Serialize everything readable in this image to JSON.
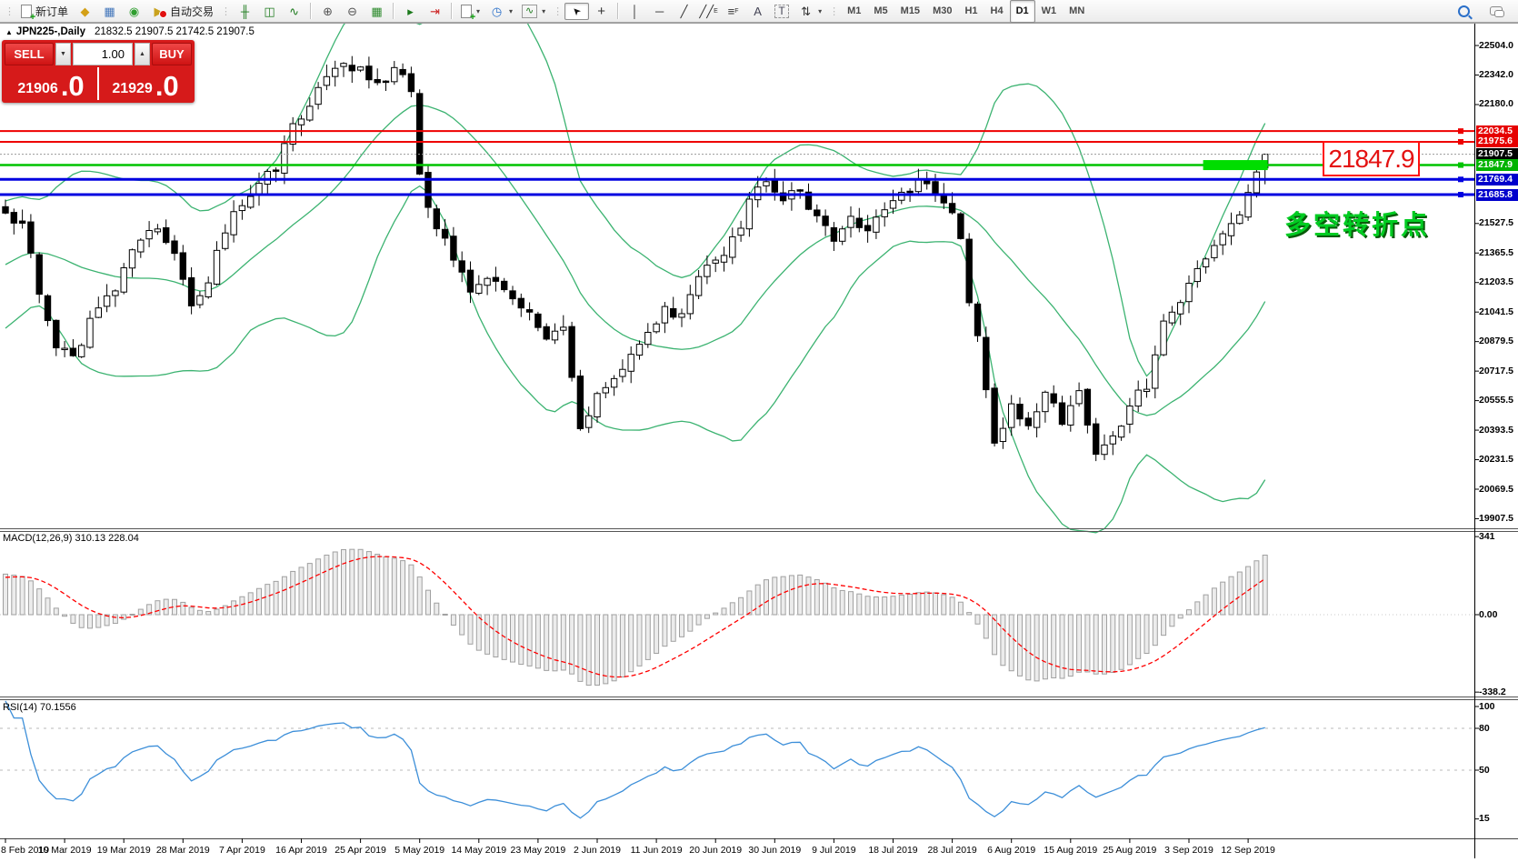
{
  "toolbar": {
    "new_order_label": "新订单",
    "autotrading_label": "自动交易",
    "timeframes": [
      "M1",
      "M5",
      "M15",
      "M30",
      "H1",
      "H4",
      "D1",
      "W1",
      "MN"
    ],
    "selected_timeframe": "D1"
  },
  "chart_header": {
    "collapse": "▲",
    "symbol": "JPN225-,Daily",
    "ohlc": "21832.5 21907.5 21742.5 21907.5"
  },
  "trade_panel": {
    "sell_label": "SELL",
    "buy_label": "BUY",
    "volume": "1.00",
    "sell_price_main": "21906",
    "sell_price_big": ".0",
    "buy_price_main": "21929",
    "buy_price_big": ".0"
  },
  "annotations": {
    "price_box": "21847.9",
    "turning_point": "多空转折点",
    "price_box_color": "#e41212",
    "turning_point_color": "#00cc22"
  },
  "chart_data": {
    "type": "candlestick",
    "symbol": "JPN225-",
    "period": "Daily",
    "last_bar": {
      "open": 21832.5,
      "high": 21907.5,
      "low": 21742.5,
      "close": 21907.5
    },
    "bars": 150,
    "ylim": [
      19860,
      22624
    ],
    "price_ticks": [
      22504.0,
      22342.0,
      22180.0,
      21527.5,
      21365.5,
      21203.5,
      21041.5,
      20879.5,
      20717.5,
      20555.5,
      20393.5,
      20231.5,
      20069.5,
      19907.5
    ],
    "level_lines": [
      {
        "price": 22034.5,
        "label": "22034.5",
        "color": "#ee0000",
        "label_bg": "#e60000",
        "width": 2,
        "style": "solid",
        "anchor": true
      },
      {
        "price": 21975.6,
        "label": "21975.6",
        "color": "#ee0000",
        "label_bg": "#e60000",
        "width": 2,
        "style": "solid",
        "anchor": true
      },
      {
        "price": 21907.5,
        "label": "21907.5",
        "color": "#9a9a9a",
        "label_bg": "#000000",
        "width": 1,
        "style": "dotted",
        "anchor": false
      },
      {
        "price": 21847.9,
        "label": "21847.9",
        "color": "#00c400",
        "label_bg": "#00b300",
        "width": 2.5,
        "style": "solid",
        "anchor": true
      },
      {
        "price": 21769.4,
        "label": "21769.4",
        "color": "#0000e0",
        "label_bg": "#0000cc",
        "width": 3,
        "style": "solid",
        "anchor": true
      },
      {
        "price": 21685.8,
        "label": "21685.8",
        "color": "#0000e0",
        "label_bg": "#0000cc",
        "width": 3,
        "style": "solid",
        "anchor": true
      }
    ],
    "highlight_zone": {
      "price": 21847.9,
      "from_bar": 142,
      "to_bar": 149,
      "color": "#00dd00",
      "thickness": 11
    },
    "bollinger": {
      "period": 20,
      "deviation": 2,
      "color": "#3CB371"
    },
    "waypoints": [
      [
        0,
        21600
      ],
      [
        2,
        21520
      ],
      [
        4,
        21150
      ],
      [
        6,
        20880
      ],
      [
        8,
        20780
      ],
      [
        10,
        21000
      ],
      [
        12,
        21100
      ],
      [
        14,
        21280
      ],
      [
        16,
        21430
      ],
      [
        18,
        21500
      ],
      [
        20,
        21380
      ],
      [
        22,
        21060
      ],
      [
        24,
        21230
      ],
      [
        26,
        21480
      ],
      [
        28,
        21650
      ],
      [
        30,
        21770
      ],
      [
        32,
        21820
      ],
      [
        34,
        22080
      ],
      [
        36,
        22180
      ],
      [
        38,
        22300
      ],
      [
        40,
        22420
      ],
      [
        42,
        22380
      ],
      [
        44,
        22300
      ],
      [
        46,
        22360
      ],
      [
        48,
        22270
      ],
      [
        49,
        21780
      ],
      [
        51,
        21480
      ],
      [
        53,
        21350
      ],
      [
        55,
        21120
      ],
      [
        57,
        21260
      ],
      [
        59,
        21150
      ],
      [
        62,
        21010
      ],
      [
        64,
        20860
      ],
      [
        66,
        20960
      ],
      [
        68,
        20420
      ],
      [
        70,
        20560
      ],
      [
        72,
        20700
      ],
      [
        75,
        20880
      ],
      [
        78,
        21050
      ],
      [
        80,
        21000
      ],
      [
        82,
        21230
      ],
      [
        84,
        21350
      ],
      [
        86,
        21420
      ],
      [
        88,
        21650
      ],
      [
        90,
        21740
      ],
      [
        92,
        21680
      ],
      [
        94,
        21720
      ],
      [
        96,
        21560
      ],
      [
        98,
        21460
      ],
      [
        100,
        21560
      ],
      [
        102,
        21480
      ],
      [
        104,
        21580
      ],
      [
        106,
        21680
      ],
      [
        108,
        21740
      ],
      [
        110,
        21700
      ],
      [
        112,
        21560
      ],
      [
        113,
        21420
      ],
      [
        114,
        21120
      ],
      [
        115,
        20880
      ],
      [
        116,
        20620
      ],
      [
        117,
        20300
      ],
      [
        119,
        20540
      ],
      [
        121,
        20440
      ],
      [
        123,
        20600
      ],
      [
        125,
        20460
      ],
      [
        127,
        20580
      ],
      [
        129,
        20260
      ],
      [
        131,
        20350
      ],
      [
        133,
        20520
      ],
      [
        135,
        20640
      ],
      [
        137,
        20980
      ],
      [
        139,
        21120
      ],
      [
        141,
        21250
      ],
      [
        143,
        21380
      ],
      [
        145,
        21520
      ],
      [
        147,
        21680
      ],
      [
        148,
        21800
      ],
      [
        149,
        21907.5
      ]
    ],
    "macd": {
      "label": "MACD(12,26,9) 310.13 228.04",
      "params": [
        12,
        26,
        9
      ],
      "main_value": 310.13,
      "signal_value": 228.04,
      "axis": [
        {
          "text": "341",
          "v": 341
        },
        {
          "text": "0.00",
          "v": 0
        },
        {
          "text": "-338.2",
          "v": -338.2
        }
      ],
      "signal_color": "#ff0000",
      "histogram_color": "#c0c0c0"
    },
    "rsi": {
      "label": "RSI(14) 70.1556",
      "period": 14,
      "value": 70.1556,
      "axis": [
        {
          "text": "100",
          "v": 100
        },
        {
          "text": "80",
          "v": 80
        },
        {
          "text": "50",
          "v": 50
        },
        {
          "text": "15",
          "v": 15
        }
      ],
      "levels": [
        80,
        50
      ],
      "line_color": "#3d8fd9"
    },
    "dates": [
      "8 Feb 2019",
      "10 Mar 2019",
      "19 Mar 2019",
      "28 Mar 2019",
      "7 Apr 2019",
      "16 Apr 2019",
      "25 Apr 2019",
      "5 May 2019",
      "14 May 2019",
      "23 May 2019",
      "2 Jun 2019",
      "11 Jun 2019",
      "20 Jun 2019",
      "30 Jun 2019",
      "9 Jul 2019",
      "18 Jul 2019",
      "28 Jul 2019",
      "6 Aug 2019",
      "15 Aug 2019",
      "25 Aug 2019",
      "3 Sep 2019",
      "12 Sep 2019"
    ]
  }
}
